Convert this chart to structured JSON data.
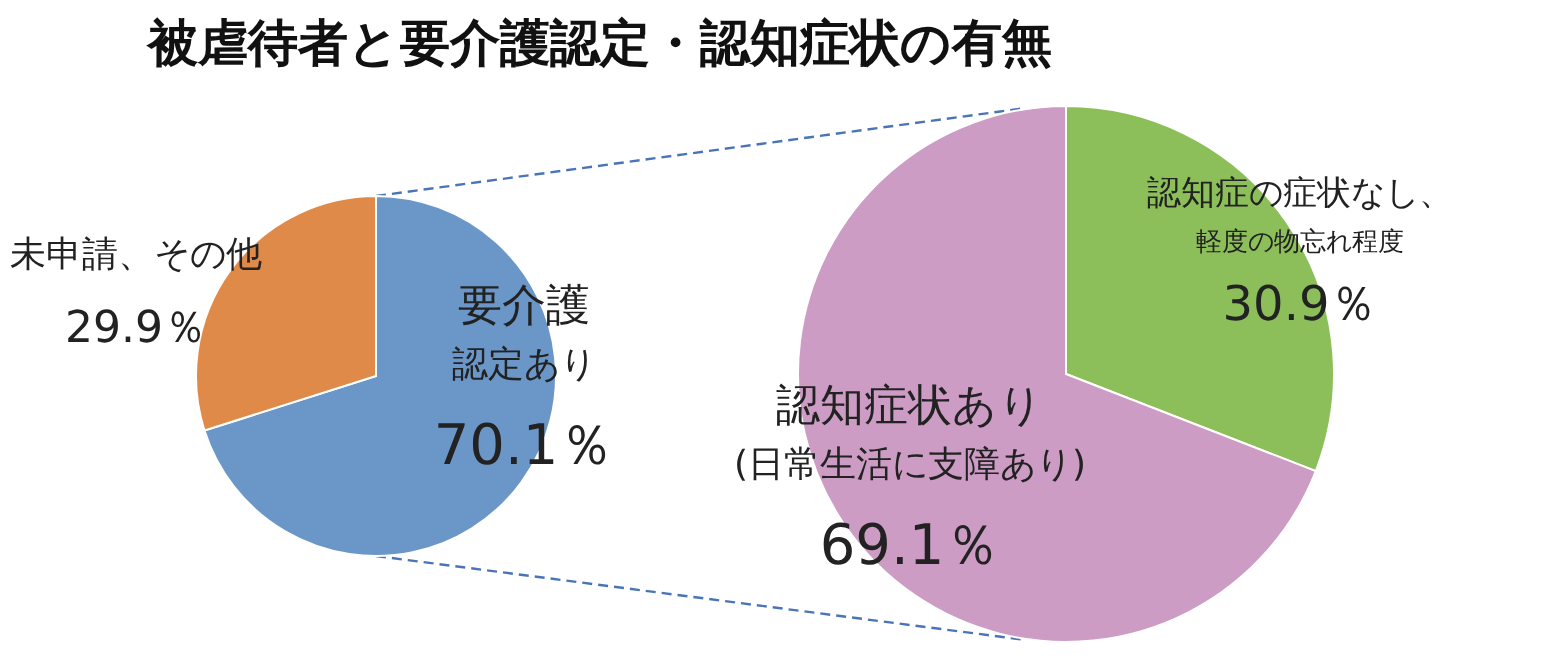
{
  "chart_data": [
    {
      "type": "pie",
      "title": "被虐待者と要介護認定・認知症状の有無",
      "categories": [
        "要介護認定あり",
        "未申請、その他"
      ],
      "values": [
        70.1,
        29.9
      ],
      "colors": [
        "#6b97c8",
        "#e08a4a"
      ],
      "value_labels": [
        "70.1％",
        "29.9％"
      ]
    },
    {
      "type": "pie",
      "categories": [
        "認知症の症状なし、軽度の物忘れ程度",
        "認知症状あり(日常生活に支障あり)"
      ],
      "values": [
        30.9,
        69.1
      ],
      "colors": [
        "#8cbf5a",
        "#cc9cc4"
      ],
      "value_labels": [
        "30.9％",
        "69.1％"
      ]
    }
  ]
}
